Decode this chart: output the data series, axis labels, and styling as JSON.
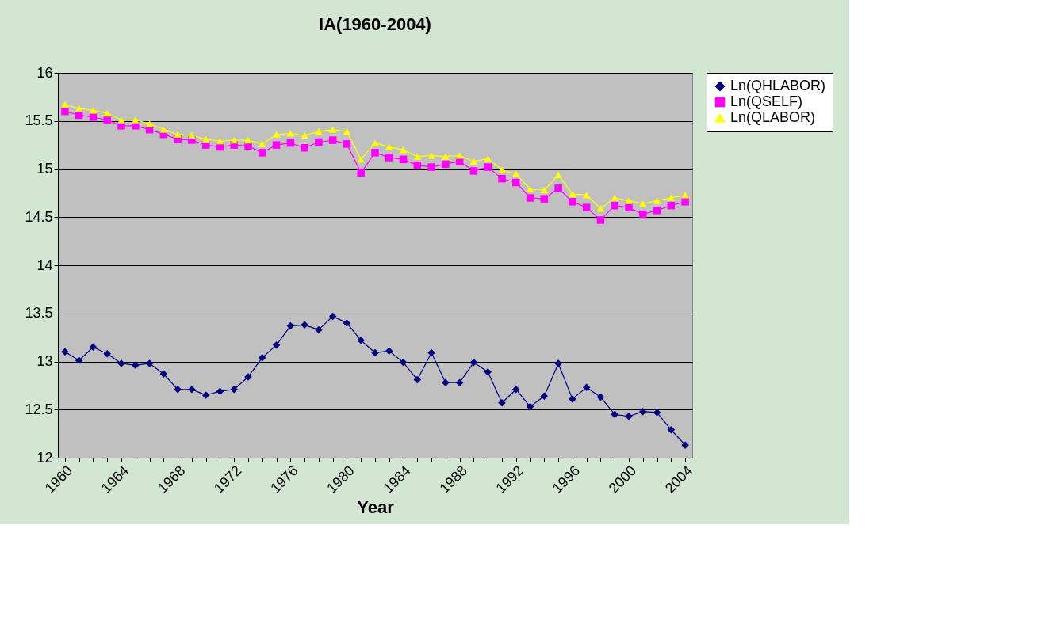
{
  "chart_data": {
    "type": "line",
    "title": "IA(1960-2004)",
    "xlabel": "Year",
    "categories": [
      "1960",
      null,
      null,
      null,
      "1964",
      null,
      null,
      null,
      "1968",
      null,
      null,
      null,
      "1972",
      null,
      null,
      null,
      "1976",
      null,
      null,
      null,
      "1980",
      null,
      null,
      null,
      "1984",
      null,
      null,
      null,
      "1988",
      null,
      null,
      null,
      "1992",
      null,
      null,
      null,
      "1996",
      null,
      null,
      null,
      "2000",
      null,
      null,
      null,
      "2004"
    ],
    "series": [
      {
        "name": "Ln(QHLABOR)",
        "color": "#000080",
        "marker": "diamond",
        "values": [
          13.1,
          13.01,
          13.15,
          13.08,
          12.98,
          12.96,
          12.98,
          12.87,
          12.71,
          12.71,
          12.65,
          12.69,
          12.71,
          12.84,
          13.04,
          13.17,
          13.37,
          13.38,
          13.33,
          13.47,
          13.4,
          13.22,
          13.09,
          13.11,
          12.99,
          12.81,
          13.09,
          12.78,
          12.78,
          12.99,
          12.89,
          12.57,
          12.71,
          12.53,
          12.64,
          12.98,
          12.61,
          12.73,
          12.63,
          12.45,
          12.43,
          12.48,
          12.47,
          12.29,
          12.13
        ]
      },
      {
        "name": "Ln(QSELF)",
        "color": "#ff00ff",
        "marker": "square",
        "values": [
          15.6,
          15.56,
          15.54,
          15.51,
          15.45,
          15.45,
          15.41,
          15.36,
          15.31,
          15.3,
          15.25,
          15.23,
          15.25,
          15.24,
          15.17,
          15.25,
          15.27,
          15.22,
          15.28,
          15.3,
          15.26,
          14.96,
          15.17,
          15.12,
          15.1,
          15.04,
          15.02,
          15.05,
          15.08,
          14.98,
          15.02,
          14.9,
          14.86,
          14.7,
          14.69,
          14.8,
          14.66,
          14.6,
          14.47,
          14.62,
          14.6,
          14.53,
          14.57,
          14.62,
          14.66
        ]
      },
      {
        "name": "Ln(QLABOR)",
        "color": "#ffff00",
        "marker": "triangle",
        "values": [
          15.67,
          15.63,
          15.61,
          15.58,
          15.51,
          15.51,
          15.47,
          15.41,
          15.36,
          15.35,
          15.31,
          15.29,
          15.3,
          15.3,
          15.26,
          15.36,
          15.37,
          15.35,
          15.39,
          15.41,
          15.39,
          15.1,
          15.27,
          15.23,
          15.2,
          15.13,
          15.14,
          15.13,
          15.14,
          15.08,
          15.11,
          14.99,
          14.95,
          14.79,
          14.78,
          14.94,
          14.74,
          14.73,
          14.59,
          14.7,
          14.67,
          14.64,
          14.67,
          14.7,
          14.73
        ]
      }
    ],
    "ylim": [
      12,
      16
    ],
    "yticks": [
      12,
      12.5,
      13,
      13.5,
      14,
      14.5,
      15,
      15.5,
      16
    ],
    "grid": "y",
    "legend": "right",
    "line_style": "solid"
  }
}
